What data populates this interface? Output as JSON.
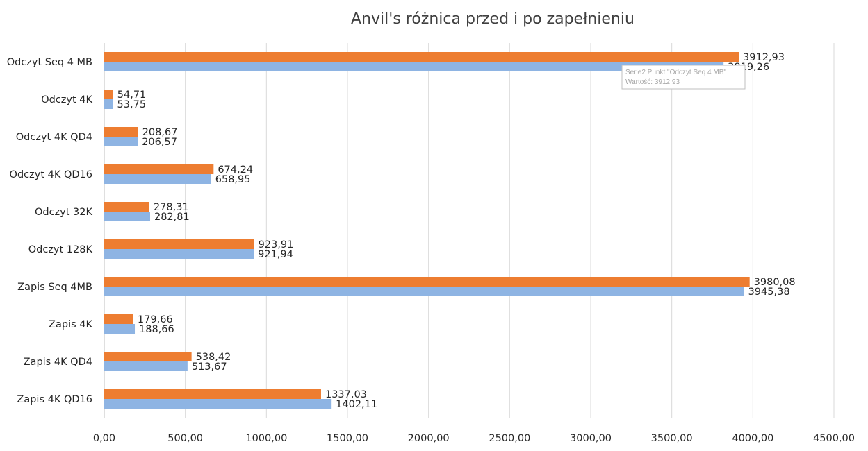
{
  "chart_data": {
    "type": "bar",
    "orientation": "horizontal",
    "title": "Anvil's różnica przed i po zapełnieniu",
    "categories": [
      "Odczyt Seq 4 MB",
      "Odczyt 4K",
      "Odczyt 4K QD4",
      "Odczyt 4K QD16",
      "Odczyt 32K",
      "Odczyt 128K",
      "Zapis Seq 4MB",
      "Zapis 4K",
      "Zapis 4K QD4",
      "Zapis 4K QD16"
    ],
    "series": [
      {
        "color": "#ed7d31",
        "values": [
          3912.93,
          54.71,
          208.67,
          674.24,
          278.31,
          923.91,
          3980.08,
          179.66,
          538.42,
          1337.03
        ],
        "labels": [
          "3912,93",
          "54,71",
          "208,67",
          "674,24",
          "278,31",
          "923,91",
          "3980,08",
          "179,66",
          "538,42",
          "1337,03"
        ]
      },
      {
        "color": "#8eb4e3",
        "values": [
          3819.26,
          53.75,
          206.57,
          658.95,
          282.81,
          921.94,
          3945.38,
          188.66,
          513.67,
          1402.11
        ],
        "labels": [
          "3819,26",
          "53,75",
          "206,57",
          "658,95",
          "282,81",
          "921,94",
          "3945,38",
          "188,66",
          "513,67",
          "1402,11"
        ]
      }
    ],
    "xlim": [
      0,
      4500
    ],
    "x_ticks": [
      0,
      500,
      1000,
      1500,
      2000,
      2500,
      3000,
      3500,
      4000,
      4500
    ],
    "x_tick_labels": [
      "0,00",
      "500,00",
      "1000,00",
      "1500,00",
      "2000,00",
      "2500,00",
      "3000,00",
      "3500,00",
      "4000,00",
      "4500,00"
    ],
    "grid": true,
    "legend": "none",
    "tooltip": {
      "line1": "Serie2 Punkt \"Odczyt Seq 4 MB\"",
      "line2": "Wartość: 3912,93"
    }
  }
}
